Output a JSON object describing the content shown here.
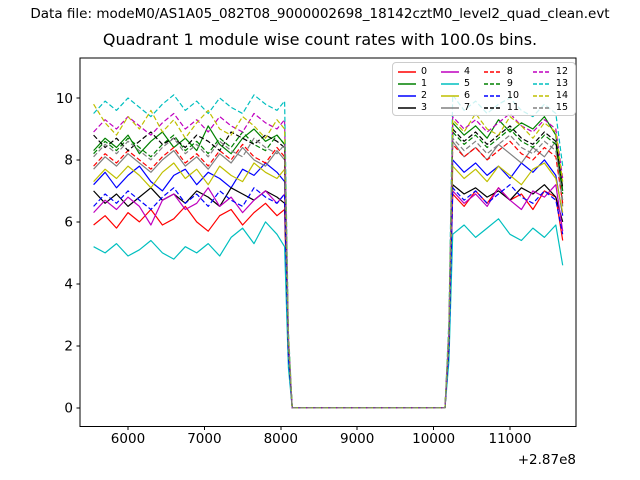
{
  "header": {
    "data_file_text": "Data file: modeM0/AS1A05_082T08_9000002698_18142cztM0_level2_quad_clean.evt"
  },
  "chart_data": {
    "type": "line",
    "title": "Quadrant 1 module wise count rates with 100.0s bins.",
    "bin_seconds": 100.0,
    "quadrant": 1,
    "xlabel": "",
    "ylabel": "",
    "x_offset_text": "+2.87e8",
    "xlim": [
      5372,
      11864
    ],
    "ylim": [
      -0.61,
      11.29
    ],
    "x_ticks": [
      6000,
      7000,
      8000,
      9000,
      10000,
      11000
    ],
    "x_tick_labels": [
      "6000",
      "7000",
      "8000",
      "9000",
      "10000",
      "11000"
    ],
    "y_ticks": [
      0,
      2,
      4,
      6,
      8,
      10
    ],
    "y_tick_labels": [
      "0",
      "2",
      "4",
      "6",
      "8",
      "10"
    ],
    "grid": false,
    "legend_position": "upper right",
    "legend_columns": 4,
    "x": [
      5550,
      5700,
      5850,
      6000,
      6150,
      6300,
      6450,
      6600,
      6750,
      6900,
      7050,
      7200,
      7350,
      7500,
      7650,
      7800,
      7950,
      8050,
      8100,
      8150,
      8400,
      8700,
      9000,
      9300,
      9600,
      9900,
      10150,
      10200,
      10250,
      10400,
      10550,
      10700,
      10850,
      11000,
      11150,
      11300,
      11450,
      11600,
      11690
    ],
    "series": [
      {
        "label": "0",
        "color": "#ff0000",
        "linestyle": "solid",
        "values": [
          5.9,
          6.2,
          5.8,
          6.3,
          6.0,
          6.4,
          5.9,
          6.1,
          6.5,
          6.0,
          5.7,
          6.2,
          6.4,
          5.9,
          6.3,
          6.6,
          6.2,
          6.4,
          1.6,
          0,
          0,
          0,
          0,
          0,
          0,
          0,
          0,
          1.8,
          6.9,
          6.5,
          7.0,
          6.6,
          7.1,
          6.7,
          6.9,
          6.4,
          7.0,
          6.8,
          5.4
        ]
      },
      {
        "label": "1",
        "color": "#008000",
        "linestyle": "solid",
        "values": [
          8.3,
          8.7,
          8.4,
          8.8,
          8.2,
          8.6,
          8.9,
          8.4,
          8.7,
          8.3,
          9.1,
          8.5,
          8.2,
          8.7,
          9.0,
          8.6,
          8.8,
          8.5,
          2.1,
          0,
          0,
          0,
          0,
          0,
          0,
          0,
          0,
          2.4,
          9.2,
          8.8,
          9.1,
          8.7,
          9.3,
          8.9,
          9.2,
          9.0,
          9.4,
          8.8,
          7.0
        ]
      },
      {
        "label": "2",
        "color": "#0000ff",
        "linestyle": "solid",
        "values": [
          7.2,
          7.6,
          7.1,
          7.5,
          7.8,
          7.3,
          7.0,
          7.5,
          7.7,
          7.2,
          7.6,
          7.4,
          7.1,
          7.7,
          7.5,
          7.9,
          7.6,
          7.3,
          1.8,
          0,
          0,
          0,
          0,
          0,
          0,
          0,
          0,
          2.0,
          8.0,
          7.6,
          7.9,
          7.5,
          7.8,
          7.4,
          7.9,
          7.6,
          8.0,
          7.5,
          6.2
        ]
      },
      {
        "label": "3",
        "color": "#000000",
        "linestyle": "solid",
        "values": [
          7.0,
          6.6,
          6.9,
          6.5,
          6.8,
          7.1,
          6.7,
          6.9,
          6.6,
          7.0,
          6.8,
          6.5,
          7.1,
          6.9,
          6.7,
          7.0,
          6.8,
          6.6,
          1.7,
          0,
          0,
          0,
          0,
          0,
          0,
          0,
          0,
          1.9,
          7.2,
          6.9,
          7.1,
          6.8,
          7.0,
          6.7,
          7.1,
          6.9,
          7.2,
          6.8,
          6.0
        ]
      },
      {
        "label": "4",
        "color": "#bf00bf",
        "linestyle": "solid",
        "values": [
          6.3,
          6.7,
          6.4,
          6.8,
          6.5,
          5.9,
          6.7,
          6.9,
          6.4,
          6.6,
          7.1,
          6.5,
          6.8,
          6.3,
          6.7,
          7.0,
          6.6,
          6.9,
          1.7,
          0,
          0,
          0,
          0,
          0,
          0,
          0,
          0,
          1.9,
          7.0,
          6.6,
          6.9,
          6.5,
          7.1,
          6.7,
          6.4,
          7.0,
          6.8,
          7.2,
          5.7
        ]
      },
      {
        "label": "5",
        "color": "#00bfbf",
        "linestyle": "solid",
        "values": [
          5.2,
          5.0,
          5.3,
          4.9,
          5.1,
          5.4,
          5.0,
          4.8,
          5.2,
          5.0,
          5.3,
          4.9,
          5.5,
          5.8,
          5.3,
          6.0,
          5.6,
          5.2,
          1.3,
          0,
          0,
          0,
          0,
          0,
          0,
          0,
          0,
          1.5,
          5.6,
          5.9,
          5.5,
          5.8,
          6.1,
          5.6,
          5.4,
          5.8,
          5.5,
          5.9,
          4.6
        ]
      },
      {
        "label": "6",
        "color": "#bfbf00",
        "linestyle": "solid",
        "values": [
          7.3,
          7.7,
          7.4,
          7.8,
          7.5,
          7.1,
          7.6,
          7.9,
          7.4,
          7.7,
          7.2,
          7.8,
          7.5,
          7.3,
          7.9,
          7.6,
          7.4,
          7.7,
          1.9,
          0,
          0,
          0,
          0,
          0,
          0,
          0,
          0,
          2.1,
          7.8,
          7.4,
          7.7,
          7.3,
          7.8,
          7.5,
          7.2,
          7.7,
          7.9,
          7.4,
          6.3
        ]
      },
      {
        "label": "7",
        "color": "#808080",
        "linestyle": "solid",
        "values": [
          7.7,
          8.1,
          7.8,
          8.2,
          7.9,
          7.6,
          8.0,
          8.3,
          7.8,
          8.1,
          7.7,
          8.2,
          7.9,
          8.4,
          8.0,
          7.8,
          8.3,
          8.0,
          2.0,
          0,
          0,
          0,
          0,
          0,
          0,
          0,
          0,
          2.2,
          8.6,
          8.1,
          8.4,
          8.0,
          8.5,
          8.2,
          7.9,
          8.4,
          8.1,
          8.6,
          6.5
        ]
      },
      {
        "label": "8",
        "color": "#ff0000",
        "linestyle": "dashed",
        "values": [
          7.8,
          8.2,
          7.9,
          8.3,
          8.0,
          7.7,
          8.1,
          8.4,
          7.9,
          8.2,
          7.8,
          8.3,
          8.0,
          8.5,
          8.1,
          7.9,
          8.4,
          8.1,
          2.0,
          0,
          0,
          0,
          0,
          0,
          0,
          0,
          0,
          2.2,
          8.5,
          8.1,
          8.4,
          8.0,
          8.3,
          8.6,
          8.2,
          8.0,
          8.4,
          8.1,
          6.6
        ]
      },
      {
        "label": "9",
        "color": "#008000",
        "linestyle": "dashed",
        "values": [
          8.2,
          8.6,
          8.3,
          8.7,
          8.4,
          8.1,
          8.5,
          8.8,
          8.3,
          8.6,
          8.2,
          8.7,
          8.4,
          8.9,
          8.5,
          8.3,
          8.8,
          8.5,
          2.1,
          0,
          0,
          0,
          0,
          0,
          0,
          0,
          0,
          2.3,
          8.9,
          8.5,
          8.8,
          8.4,
          8.7,
          9.0,
          8.6,
          8.4,
          8.8,
          8.5,
          6.9
        ]
      },
      {
        "label": "10",
        "color": "#0000ff",
        "linestyle": "dashed",
        "values": [
          6.5,
          6.9,
          6.6,
          7.0,
          6.7,
          6.4,
          6.8,
          7.1,
          6.6,
          6.9,
          6.5,
          7.0,
          6.7,
          6.5,
          7.1,
          6.8,
          6.6,
          6.9,
          1.7,
          0,
          0,
          0,
          0,
          0,
          0,
          0,
          0,
          1.9,
          7.1,
          6.7,
          7.0,
          6.6,
          6.9,
          7.2,
          6.8,
          6.6,
          7.0,
          6.7,
          5.6
        ]
      },
      {
        "label": "11",
        "color": "#000000",
        "linestyle": "dashed",
        "values": [
          8.8,
          8.4,
          8.7,
          8.3,
          8.6,
          8.9,
          8.5,
          8.7,
          8.4,
          8.8,
          8.6,
          8.3,
          8.9,
          8.7,
          8.5,
          8.8,
          8.6,
          8.4,
          2.1,
          0,
          0,
          0,
          0,
          0,
          0,
          0,
          0,
          2.3,
          9.0,
          8.6,
          8.9,
          8.5,
          8.8,
          9.1,
          8.7,
          8.5,
          8.9,
          8.6,
          7.1
        ]
      },
      {
        "label": "12",
        "color": "#bf00bf",
        "linestyle": "dashed",
        "values": [
          8.9,
          9.3,
          9.0,
          9.4,
          9.1,
          8.8,
          9.2,
          9.5,
          9.0,
          9.3,
          8.9,
          9.4,
          9.1,
          8.9,
          9.5,
          9.2,
          9.0,
          9.3,
          2.3,
          0,
          0,
          0,
          0,
          0,
          0,
          0,
          0,
          2.5,
          9.4,
          9.0,
          9.3,
          8.9,
          9.2,
          9.5,
          9.1,
          8.9,
          9.3,
          9.0,
          7.4
        ]
      },
      {
        "label": "13",
        "color": "#00bfbf",
        "linestyle": "dashed",
        "values": [
          9.5,
          9.9,
          9.6,
          10.0,
          9.7,
          9.4,
          9.8,
          10.1,
          9.6,
          9.9,
          9.5,
          10.0,
          9.7,
          9.5,
          10.1,
          9.8,
          9.6,
          9.9,
          2.5,
          0,
          0,
          0,
          0,
          0,
          0,
          0,
          0,
          2.8,
          10.1,
          9.6,
          9.9,
          9.5,
          9.8,
          10.0,
          9.6,
          9.4,
          9.8,
          9.5,
          7.8
        ]
      },
      {
        "label": "14",
        "color": "#bfbf00",
        "linestyle": "dashed",
        "values": [
          9.8,
          9.2,
          8.8,
          9.4,
          9.0,
          9.6,
          8.9,
          9.3,
          8.7,
          9.2,
          9.6,
          9.0,
          8.8,
          9.4,
          9.1,
          8.7,
          9.3,
          9.0,
          2.3,
          0,
          0,
          0,
          0,
          0,
          0,
          0,
          0,
          2.5,
          9.3,
          8.9,
          9.5,
          9.0,
          8.8,
          9.4,
          9.1,
          8.7,
          9.2,
          8.9,
          7.3
        ]
      },
      {
        "label": "15",
        "color": "#808080",
        "linestyle": "dashed",
        "values": [
          8.1,
          8.5,
          8.2,
          8.6,
          8.3,
          8.0,
          8.4,
          8.7,
          8.2,
          8.5,
          8.1,
          8.6,
          8.3,
          8.1,
          8.7,
          8.4,
          8.2,
          8.5,
          2.1,
          0,
          0,
          0,
          0,
          0,
          0,
          0,
          0,
          2.3,
          8.7,
          8.3,
          8.6,
          8.2,
          8.5,
          8.8,
          8.4,
          8.2,
          8.6,
          8.3,
          6.7
        ]
      }
    ]
  }
}
